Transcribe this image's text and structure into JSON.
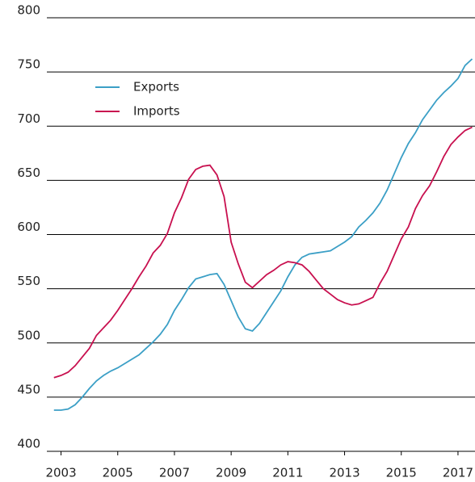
{
  "chart_data": {
    "type": "line",
    "x": [
      2002.75,
      2003,
      2003.25,
      2003.5,
      2003.75,
      2004,
      2004.25,
      2004.5,
      2004.75,
      2005,
      2005.25,
      2005.5,
      2005.75,
      2006,
      2006.25,
      2006.5,
      2006.75,
      2007,
      2007.25,
      2007.5,
      2007.75,
      2008,
      2008.25,
      2008.5,
      2008.75,
      2009,
      2009.25,
      2009.5,
      2009.75,
      2010,
      2010.25,
      2010.5,
      2010.75,
      2011,
      2011.25,
      2011.5,
      2011.75,
      2012,
      2012.25,
      2012.5,
      2012.75,
      2013,
      2013.25,
      2013.5,
      2013.75,
      2014,
      2014.25,
      2014.5,
      2014.75,
      2015,
      2015.25,
      2015.5,
      2015.75,
      2016,
      2016.25,
      2016.5,
      2016.75,
      2017,
      2017.25,
      2017.5
    ],
    "series": [
      {
        "name": "Exports",
        "color": "#3b9fc6",
        "values": [
          438,
          438,
          439,
          443,
          450,
          458,
          465,
          470,
          474,
          477,
          481,
          485,
          489,
          495,
          501,
          508,
          517,
          530,
          540,
          551,
          559,
          561,
          563,
          564,
          554,
          539,
          524,
          513,
          511,
          518,
          528,
          538,
          548,
          561,
          572,
          579,
          582,
          583,
          584,
          585,
          589,
          593,
          598,
          607,
          613,
          620,
          629,
          641,
          656,
          671,
          684,
          694,
          706,
          715,
          724,
          731,
          737,
          744,
          756,
          762
        ]
      },
      {
        "name": "Imports",
        "color": "#c8104f",
        "values": [
          468,
          470,
          473,
          479,
          487,
          495,
          507,
          514,
          521,
          530,
          540,
          550,
          561,
          571,
          583,
          590,
          601,
          620,
          634,
          651,
          660,
          663,
          664,
          655,
          635,
          593,
          573,
          556,
          551,
          557,
          563,
          567,
          572,
          575,
          574,
          572,
          566,
          558,
          550,
          545,
          540,
          537,
          535,
          536,
          539,
          542,
          555,
          566,
          581,
          596,
          607,
          624,
          636,
          645,
          658,
          672,
          683,
          690,
          696,
          699
        ]
      }
    ],
    "xlim": [
      2002.5,
      2017.6
    ],
    "xticks": [
      2003,
      2005,
      2007,
      2009,
      2011,
      2013,
      2015,
      2017
    ],
    "ylim": [
      400,
      800
    ],
    "yticks": [
      400,
      450,
      500,
      550,
      600,
      650,
      700,
      750,
      800
    ],
    "grid": true,
    "legend": "upper left"
  }
}
